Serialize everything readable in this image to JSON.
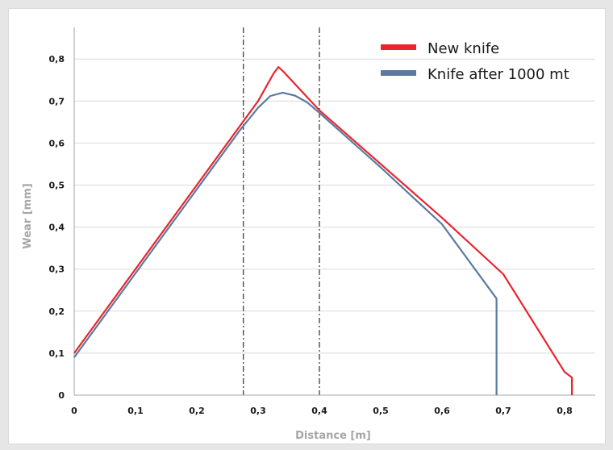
{
  "chart_data": {
    "type": "line",
    "title": "",
    "xlabel": "Distance [m]",
    "ylabel": "Wear [mm]",
    "xlim": [
      0,
      0.85
    ],
    "ylim": [
      0,
      0.85
    ],
    "x_ticks": [
      {
        "value": 0,
        "label": "0"
      },
      {
        "value": 0.1,
        "label": "0,1"
      },
      {
        "value": 0.2,
        "label": "0,2"
      },
      {
        "value": 0.3,
        "label": "0,3"
      },
      {
        "value": 0.4,
        "label": "0,4"
      },
      {
        "value": 0.5,
        "label": "0,5"
      },
      {
        "value": 0.6,
        "label": "0,6"
      },
      {
        "value": 0.7,
        "label": "0,7"
      },
      {
        "value": 0.8,
        "label": "0,8"
      }
    ],
    "y_ticks": [
      {
        "value": 0,
        "label": "0"
      },
      {
        "value": 0.1,
        "label": "0,1"
      },
      {
        "value": 0.2,
        "label": "0,2"
      },
      {
        "value": 0.3,
        "label": "0,3"
      },
      {
        "value": 0.4,
        "label": "0,4"
      },
      {
        "value": 0.5,
        "label": "0,5"
      },
      {
        "value": 0.6,
        "label": "0,6"
      },
      {
        "value": 0.7,
        "label": "0,7"
      },
      {
        "value": 0.8,
        "label": "0,8"
      }
    ],
    "grid": "horizontal",
    "legend": "top-right",
    "vertical_markers": [
      0.276,
      0.4
    ],
    "series": [
      {
        "name": "New knife",
        "color": "#e8262e",
        "points": [
          [
            0,
            0.1
          ],
          [
            0.1,
            0.3
          ],
          [
            0.2,
            0.5
          ],
          [
            0.3,
            0.7
          ],
          [
            0.325,
            0.765
          ],
          [
            0.333,
            0.781
          ],
          [
            0.34,
            0.772
          ],
          [
            0.4,
            0.678
          ],
          [
            0.5,
            0.55
          ],
          [
            0.6,
            0.422
          ],
          [
            0.7,
            0.288
          ],
          [
            0.8,
            0.055
          ],
          [
            0.812,
            0.042
          ],
          [
            0.812,
            0
          ]
        ]
      },
      {
        "name": "Knife after 1000 mt",
        "color": "#5a7aa0",
        "points": [
          [
            0,
            0.09
          ],
          [
            0.1,
            0.29
          ],
          [
            0.2,
            0.49
          ],
          [
            0.27,
            0.63
          ],
          [
            0.3,
            0.684
          ],
          [
            0.32,
            0.712
          ],
          [
            0.34,
            0.72
          ],
          [
            0.36,
            0.713
          ],
          [
            0.38,
            0.697
          ],
          [
            0.4,
            0.672
          ],
          [
            0.5,
            0.542
          ],
          [
            0.6,
            0.407
          ],
          [
            0.689,
            0.23
          ],
          [
            0.689,
            0
          ]
        ]
      }
    ]
  }
}
